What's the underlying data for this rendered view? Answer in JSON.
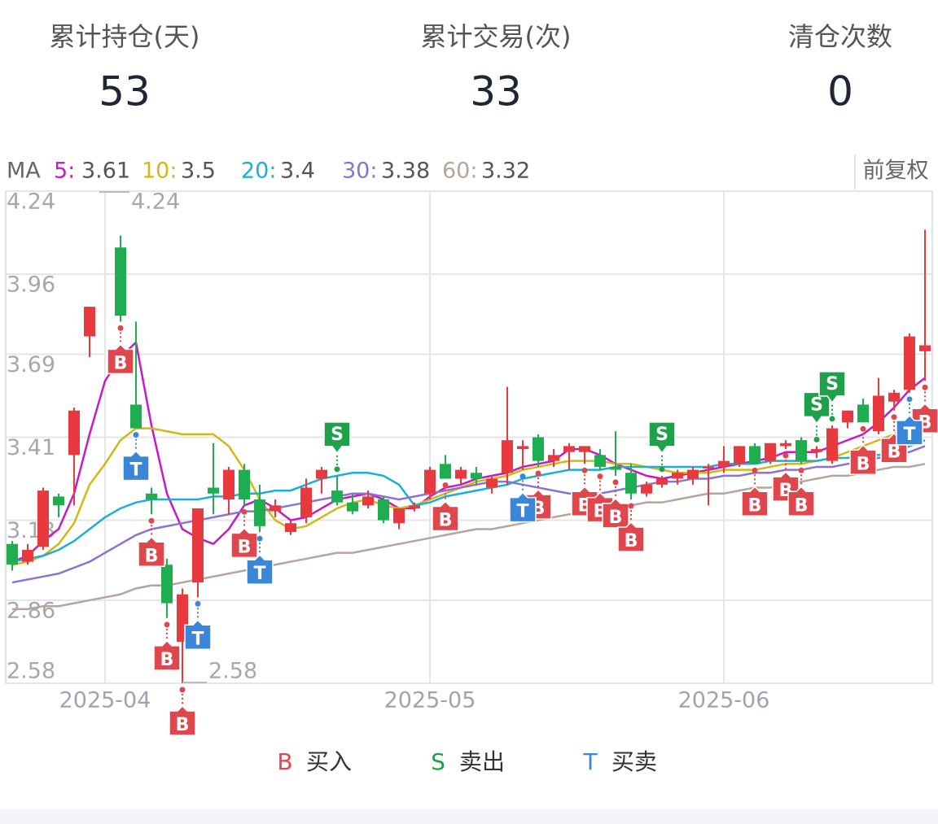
{
  "stats": [
    {
      "label": "累计持仓(天)",
      "value": 53
    },
    {
      "label": "累计交易(次)",
      "value": 33
    },
    {
      "label": "清仓次数",
      "value": 0
    }
  ],
  "chart_data": {
    "type": "candlestick",
    "ma_label": "MA",
    "adjust": "前复权",
    "up_color": "#e8393f",
    "down_color": "#1fae4f",
    "ylim": [
      2.58,
      4.24
    ],
    "yticks": [
      4.24,
      3.96,
      3.69,
      3.41,
      3.13,
      2.86,
      2.58
    ],
    "xticks": [
      {
        "value": 6,
        "label": "2025-04"
      },
      {
        "value": 27,
        "label": "2025-05"
      },
      {
        "value": 46,
        "label": "2025-06"
      }
    ],
    "grid": true,
    "open": [
      3.05,
      2.99,
      3.04,
      3.21,
      3.35,
      3.75,
      null,
      4.05,
      3.52,
      3.22,
      2.98,
      2.72,
      2.92,
      3.24,
      3.2,
      3.3,
      3.2,
      3.16,
      3.09,
      3.14,
      3.27,
      3.23,
      3.19,
      3.18,
      3.2,
      3.12,
      3.17,
      3.22,
      3.32,
      3.27,
      3.29,
      3.24,
      3.29,
      3.37,
      3.41,
      3.33,
      3.36,
      3.36,
      3.35,
      3.31,
      3.29,
      3.22,
      3.25,
      3.27,
      3.27,
      3.31,
      3.31,
      3.32,
      3.38,
      3.33,
      3.38,
      3.4,
      3.36,
      3.33,
      3.46,
      3.52,
      3.43,
      3.53,
      3.57,
      3.7
    ],
    "high": [
      3.06,
      3.05,
      3.24,
      3.22,
      3.51,
      3.85,
      null,
      4.09,
      3.8,
      3.24,
      3.0,
      2.9,
      3.17,
      3.39,
      3.31,
      3.32,
      3.25,
      3.2,
      3.13,
      3.27,
      3.31,
      3.28,
      3.22,
      3.23,
      3.21,
      3.17,
      3.19,
      3.31,
      3.35,
      3.31,
      3.31,
      3.28,
      3.58,
      3.4,
      3.42,
      3.37,
      3.39,
      3.38,
      3.37,
      3.43,
      3.32,
      3.26,
      3.28,
      3.3,
      3.31,
      3.32,
      3.38,
      3.38,
      3.39,
      3.39,
      3.4,
      3.41,
      3.38,
      3.45,
      3.5,
      3.54,
      3.61,
      3.57,
      3.76,
      4.11
    ],
    "low": [
      2.96,
      2.98,
      3.03,
      3.14,
      3.18,
      3.68,
      null,
      3.8,
      3.44,
      3.15,
      2.8,
      2.58,
      2.87,
      3.15,
      3.15,
      3.18,
      3.09,
      3.14,
      3.08,
      3.12,
      3.22,
      3.18,
      3.15,
      3.17,
      3.12,
      3.1,
      3.16,
      3.2,
      3.27,
      3.25,
      3.25,
      3.22,
      3.25,
      3.3,
      3.31,
      3.31,
      3.3,
      3.32,
      3.3,
      3.28,
      3.2,
      3.21,
      3.24,
      3.25,
      3.25,
      3.18,
      3.29,
      3.31,
      3.32,
      3.32,
      3.37,
      3.32,
      3.34,
      3.32,
      3.44,
      3.46,
      3.42,
      3.5,
      3.56,
      3.6
    ],
    "close": [
      2.98,
      3.03,
      3.23,
      3.18,
      3.5,
      3.85,
      null,
      3.82,
      3.44,
      3.2,
      2.85,
      2.88,
      3.17,
      3.22,
      3.3,
      3.2,
      3.11,
      3.18,
      3.12,
      3.24,
      3.3,
      3.19,
      3.16,
      3.21,
      3.13,
      3.17,
      3.18,
      3.3,
      3.27,
      3.3,
      3.27,
      3.27,
      3.4,
      3.38,
      3.33,
      3.35,
      3.38,
      3.38,
      3.31,
      3.3,
      3.22,
      3.25,
      3.27,
      3.29,
      3.3,
      3.31,
      3.33,
      3.38,
      3.32,
      3.39,
      3.39,
      3.33,
      3.37,
      3.44,
      3.5,
      3.46,
      3.55,
      3.56,
      3.75,
      3.72
    ],
    "series": [
      {
        "name": "5:",
        "color": "#c51bc5",
        "values": [
          2.99,
          3.01,
          3.06,
          3.1,
          3.22,
          3.42,
          3.6,
          3.68,
          3.73,
          3.45,
          3.22,
          3.1,
          3.07,
          3.05,
          3.1,
          3.18,
          3.2,
          3.17,
          3.13,
          3.14,
          3.17,
          3.2,
          3.21,
          3.22,
          3.2,
          3.17,
          3.17,
          3.21,
          3.24,
          3.25,
          3.27,
          3.28,
          3.29,
          3.31,
          3.32,
          3.33,
          3.37,
          3.37,
          3.35,
          3.32,
          3.3,
          3.28,
          3.27,
          3.28,
          3.29,
          3.3,
          3.31,
          3.32,
          3.33,
          3.34,
          3.36,
          3.36,
          3.36,
          3.38,
          3.4,
          3.42,
          3.46,
          3.51,
          3.57,
          3.61
        ]
      },
      {
        "name": "10:",
        "color": "#d3b712",
        "values": [
          2.98,
          2.99,
          3.01,
          3.05,
          3.12,
          3.25,
          3.32,
          3.4,
          3.44,
          3.44,
          3.43,
          3.42,
          3.42,
          3.42,
          3.38,
          3.3,
          3.2,
          3.13,
          3.1,
          3.11,
          3.14,
          3.17,
          3.19,
          3.2,
          3.18,
          3.17,
          3.18,
          3.2,
          3.22,
          3.24,
          3.26,
          3.27,
          3.28,
          3.3,
          3.31,
          3.32,
          3.33,
          3.33,
          3.33,
          3.32,
          3.32,
          3.31,
          3.3,
          3.29,
          3.29,
          3.29,
          3.3,
          3.3,
          3.3,
          3.31,
          3.32,
          3.32,
          3.33,
          3.34,
          3.36,
          3.38,
          3.4,
          3.42,
          3.46,
          3.5
        ]
      },
      {
        "name": "20:",
        "color": "#1aafd6",
        "values": [
          2.99,
          3.0,
          3.01,
          3.03,
          3.06,
          3.1,
          3.14,
          3.17,
          3.19,
          3.2,
          3.2,
          3.2,
          3.2,
          3.21,
          3.21,
          3.22,
          3.22,
          3.23,
          3.23,
          3.25,
          3.27,
          3.28,
          3.29,
          3.29,
          3.28,
          3.25,
          3.18,
          3.19,
          3.21,
          3.22,
          3.23,
          3.24,
          3.25,
          3.27,
          3.28,
          3.29,
          3.3,
          3.3,
          3.3,
          3.31,
          3.31,
          3.31,
          3.31,
          3.31,
          3.31,
          3.31,
          3.32,
          3.32,
          3.32,
          3.33,
          3.33,
          3.33,
          3.33,
          3.34,
          3.34,
          3.35,
          3.35,
          3.36,
          3.38,
          3.4
        ]
      },
      {
        "name": "30:",
        "color": "#8b73cf",
        "values": [
          2.92,
          2.93,
          2.94,
          2.95,
          2.97,
          2.99,
          3.02,
          3.05,
          3.08,
          3.1,
          3.11,
          3.12,
          3.13,
          3.14,
          3.15,
          3.16,
          3.16,
          3.17,
          3.18,
          3.19,
          3.2,
          3.21,
          3.22,
          3.22,
          3.21,
          3.2,
          3.21,
          3.22,
          3.23,
          3.24,
          3.25,
          3.26,
          3.26,
          3.25,
          3.24,
          3.23,
          3.22,
          3.22,
          3.22,
          3.23,
          3.24,
          3.25,
          3.26,
          3.26,
          3.27,
          3.27,
          3.28,
          3.28,
          3.29,
          3.29,
          3.3,
          3.3,
          3.31,
          3.31,
          3.32,
          3.33,
          3.34,
          3.35,
          3.36,
          3.38
        ]
      },
      {
        "name": "60:",
        "color": "#b5a59c",
        "values": [
          2.83,
          2.83,
          2.84,
          2.84,
          2.85,
          2.86,
          2.87,
          2.88,
          2.9,
          2.91,
          2.91,
          2.92,
          2.93,
          2.94,
          2.95,
          2.96,
          2.97,
          2.98,
          2.99,
          3.0,
          3.01,
          3.02,
          3.02,
          3.03,
          3.04,
          3.05,
          3.06,
          3.07,
          3.08,
          3.09,
          3.1,
          3.1,
          3.11,
          3.12,
          3.13,
          3.14,
          3.15,
          3.15,
          3.16,
          3.17,
          3.18,
          3.19,
          3.19,
          3.2,
          3.21,
          3.22,
          3.22,
          3.23,
          3.24,
          3.24,
          3.25,
          3.26,
          3.27,
          3.28,
          3.28,
          3.29,
          3.3,
          3.31,
          3.31,
          3.32
        ]
      }
    ],
    "max": {
      "index": 6,
      "value": 4.24
    },
    "min": {
      "index": 11,
      "value": 2.58
    },
    "markers": [
      {
        "index": 7,
        "label": "B"
      },
      {
        "index": 9,
        "label": "B"
      },
      {
        "index": 10,
        "label": "B"
      },
      {
        "index": 11,
        "label": "B"
      },
      {
        "index": 15,
        "label": "B"
      },
      {
        "index": 28,
        "label": "B"
      },
      {
        "index": 34,
        "label": "B"
      },
      {
        "index": 37,
        "label": "B"
      },
      {
        "index": 38,
        "label": "B"
      },
      {
        "index": 39,
        "label": "B"
      },
      {
        "index": 40,
        "label": "B"
      },
      {
        "index": 48,
        "label": "B"
      },
      {
        "index": 50,
        "label": "B"
      },
      {
        "index": 51,
        "label": "B"
      },
      {
        "index": 55,
        "label": "B"
      },
      {
        "index": 57,
        "label": "B"
      },
      {
        "index": 59,
        "label": "B"
      },
      {
        "index": 21,
        "label": "S"
      },
      {
        "index": 42,
        "label": "S"
      },
      {
        "index": 52,
        "label": "S"
      },
      {
        "index": 53,
        "label": "S"
      },
      {
        "index": 8,
        "label": "T"
      },
      {
        "index": 12,
        "label": "T"
      },
      {
        "index": 16,
        "label": "T"
      },
      {
        "index": 33,
        "label": "T"
      },
      {
        "index": 58,
        "label": "T"
      }
    ],
    "legend": [
      {
        "symbol": "B",
        "label": "买入",
        "color": "#e0474c"
      },
      {
        "symbol": "S",
        "label": "卖出",
        "color": "#1fa04a"
      },
      {
        "symbol": "T",
        "label": "买卖",
        "color": "#3a86d8"
      }
    ]
  }
}
